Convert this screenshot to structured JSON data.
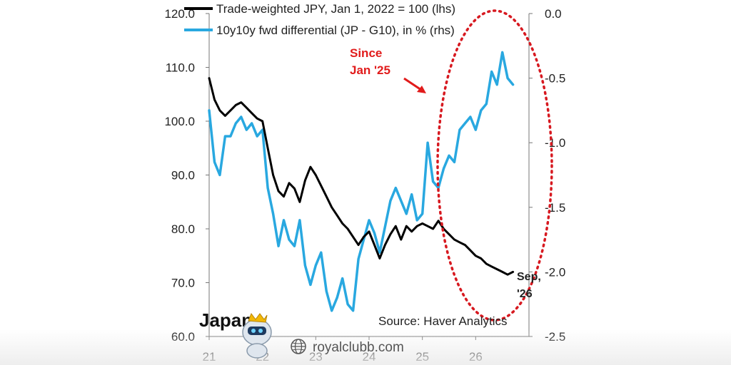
{
  "chart_data": {
    "type": "line",
    "country": "Japan",
    "source": "Source: Haver Analytics",
    "annotation": "Since\nJan '25",
    "end_label": "Sep,\n'26",
    "x_ticks": [
      "21",
      "22",
      "23",
      "24",
      "25",
      "26"
    ],
    "y_left": {
      "ylim": [
        60,
        120
      ],
      "ticks": [
        "60.0",
        "70.0",
        "80.0",
        "90.0",
        "100.0",
        "110.0",
        "120.0"
      ]
    },
    "y_right": {
      "ylim": [
        -2.5,
        0.0
      ],
      "ticks": [
        "-2.5",
        "-2.0",
        "-1.5",
        "-1.0",
        "-0.5",
        "0.0"
      ]
    },
    "series": [
      {
        "name": "Trade-weighted JPY, Jan 1, 2022 = 100 (lhs)",
        "axis": "left",
        "color": "#000000",
        "x": [
          2021.0,
          2021.1,
          2021.2,
          2021.3,
          2021.4,
          2021.5,
          2021.6,
          2021.7,
          2021.8,
          2021.9,
          2022.0,
          2022.1,
          2022.2,
          2022.3,
          2022.4,
          2022.5,
          2022.6,
          2022.7,
          2022.8,
          2022.9,
          2023.0,
          2023.1,
          2023.2,
          2023.3,
          2023.4,
          2023.5,
          2023.6,
          2023.7,
          2023.8,
          2023.9,
          2024.0,
          2024.1,
          2024.2,
          2024.3,
          2024.4,
          2024.5,
          2024.6,
          2024.7,
          2024.8,
          2024.9,
          2025.0,
          2025.1,
          2025.2,
          2025.3,
          2025.4,
          2025.5,
          2025.6,
          2025.7,
          2025.8,
          2025.9,
          2026.0,
          2026.1,
          2026.2,
          2026.3,
          2026.4,
          2026.5,
          2026.6,
          2026.7
        ],
        "values": [
          108.0,
          104.0,
          102.0,
          101.0,
          102.0,
          103.0,
          103.5,
          102.5,
          101.5,
          100.5,
          100.0,
          95.0,
          90.0,
          87.0,
          86.0,
          88.5,
          87.5,
          85.0,
          89.0,
          91.5,
          90.0,
          88.0,
          86.0,
          84.0,
          82.5,
          81.0,
          80.0,
          78.5,
          77.0,
          78.5,
          79.5,
          77.0,
          74.5,
          77.0,
          79.0,
          80.5,
          78.0,
          80.5,
          79.5,
          80.5,
          81.0,
          80.5,
          80.0,
          81.5,
          80.0,
          79.0,
          78.0,
          77.5,
          77.0,
          76.0,
          75.0,
          74.5,
          73.5,
          73.0,
          72.5,
          72.0,
          71.5,
          72.0
        ]
      },
      {
        "name": "10y10y fwd differential (JP - G10), in % (rhs)",
        "axis": "right",
        "color": "#29a8e0",
        "x": [
          2021.0,
          2021.1,
          2021.2,
          2021.3,
          2021.4,
          2021.5,
          2021.6,
          2021.7,
          2021.8,
          2021.9,
          2022.0,
          2022.1,
          2022.2,
          2022.3,
          2022.4,
          2022.5,
          2022.6,
          2022.7,
          2022.8,
          2022.9,
          2023.0,
          2023.1,
          2023.2,
          2023.3,
          2023.4,
          2023.5,
          2023.6,
          2023.7,
          2023.8,
          2023.9,
          2024.0,
          2024.1,
          2024.2,
          2024.3,
          2024.4,
          2024.5,
          2024.6,
          2024.7,
          2024.8,
          2024.9,
          2025.0,
          2025.1,
          2025.2,
          2025.3,
          2025.4,
          2025.5,
          2025.6,
          2025.7,
          2025.8,
          2025.9,
          2026.0,
          2026.1,
          2026.2,
          2026.3,
          2026.4,
          2026.5,
          2026.6,
          2026.7
        ],
        "values": [
          -0.75,
          -1.15,
          -1.25,
          -0.95,
          -0.95,
          -0.85,
          -0.8,
          -0.9,
          -0.85,
          -0.95,
          -0.9,
          -1.35,
          -1.55,
          -1.8,
          -1.6,
          -1.75,
          -1.8,
          -1.6,
          -1.95,
          -2.1,
          -1.95,
          -1.85,
          -2.15,
          -2.3,
          -2.2,
          -2.05,
          -2.25,
          -2.3,
          -1.9,
          -1.75,
          -1.6,
          -1.7,
          -1.85,
          -1.65,
          -1.45,
          -1.35,
          -1.45,
          -1.55,
          -1.4,
          -1.6,
          -1.55,
          -1.0,
          -1.3,
          -1.35,
          -1.2,
          -1.1,
          -1.15,
          -0.9,
          -0.85,
          -0.8,
          -0.9,
          -0.75,
          -0.7,
          -0.45,
          -0.55,
          -0.3,
          -0.5,
          -0.55
        ]
      }
    ],
    "legend_position": "top-left",
    "grid": false
  },
  "watermark": {
    "text": "royalclubb.com",
    "mascot_icon": "robot-mascot-icon",
    "globe_icon": "globe-icon"
  }
}
